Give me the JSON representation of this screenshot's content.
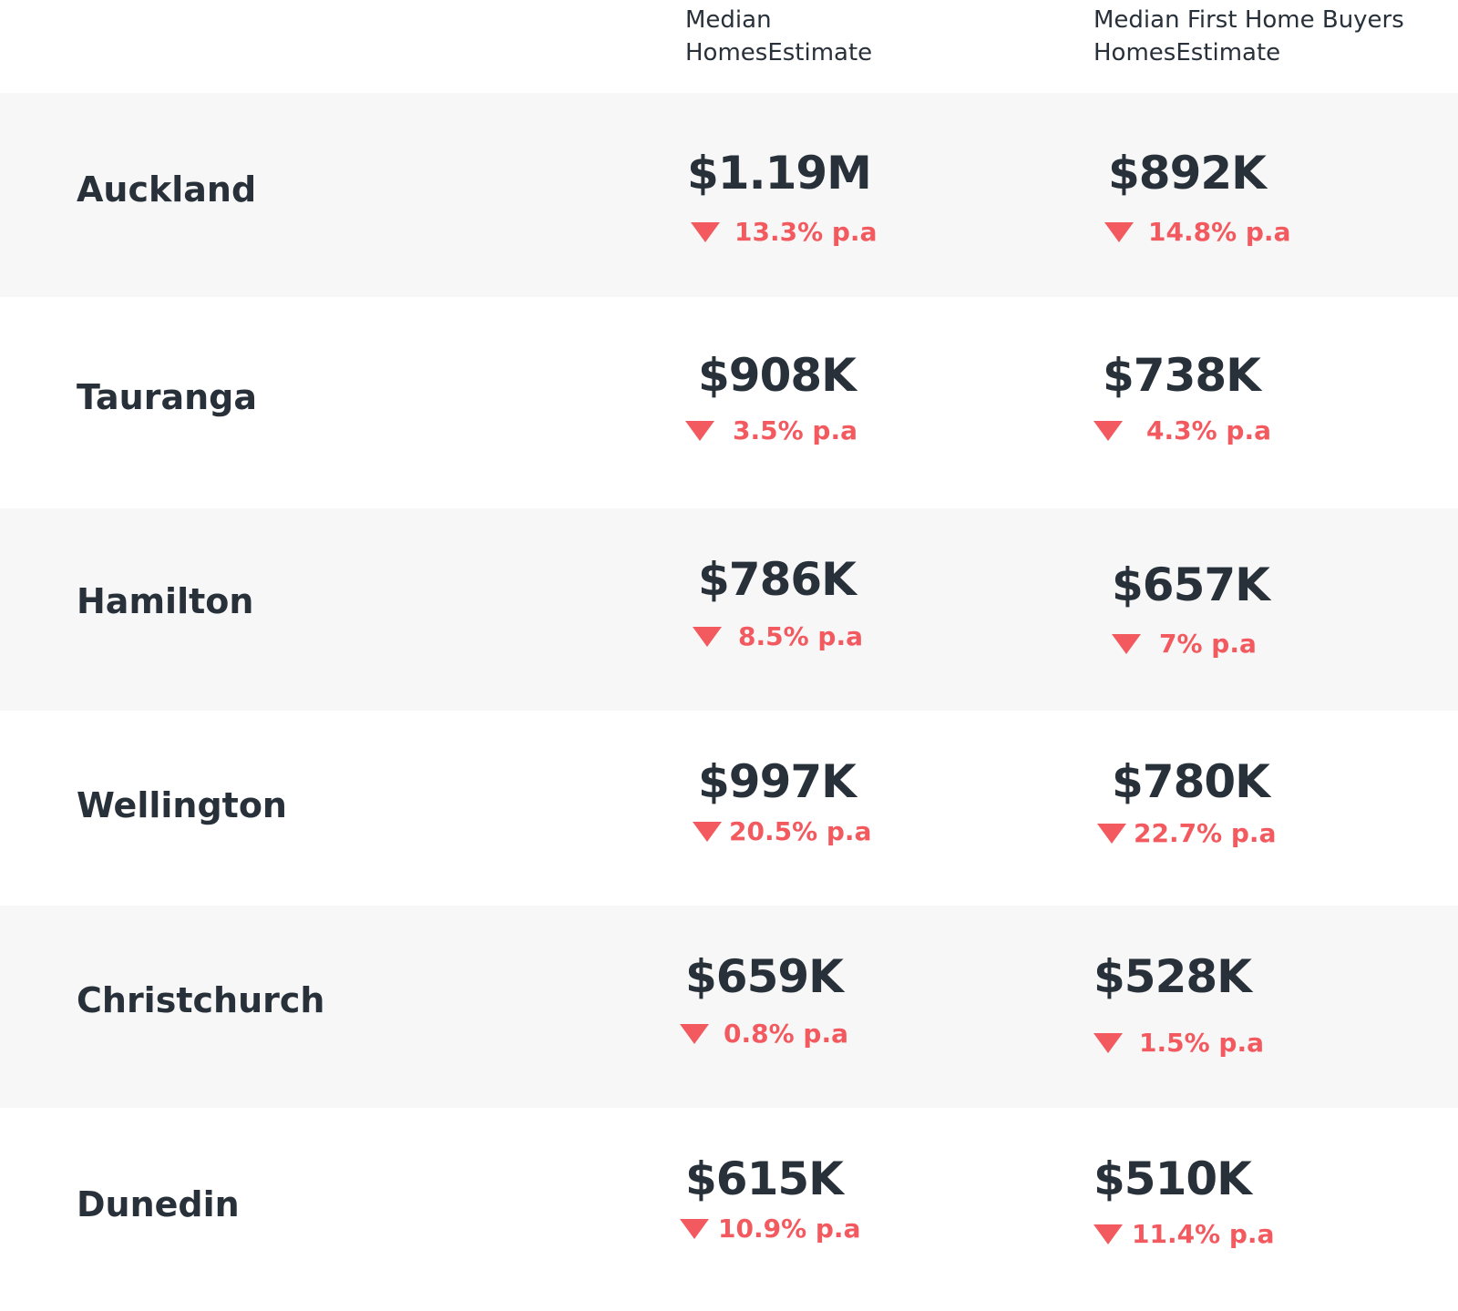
{
  "header": {
    "col1_title": "Median HomesEstimate",
    "col2_title": "Median First Home Buyers HomesEstimate"
  },
  "colors": {
    "text": "#283039",
    "decline": "#f25a5f",
    "row_shade": "#f7f7f7"
  },
  "rows": [
    {
      "city": "Auckland",
      "median": "$1.19M",
      "median_change": "13.3% p.a",
      "fhb": "$892K",
      "fhb_change": "14.8% p.a"
    },
    {
      "city": "Tauranga",
      "median": "$908K",
      "median_change": "3.5% p.a",
      "fhb": "$738K",
      "fhb_change": "4.3% p.a"
    },
    {
      "city": "Hamilton",
      "median": "$786K",
      "median_change": "8.5% p.a",
      "fhb": "$657K",
      "fhb_change": "7% p.a"
    },
    {
      "city": "Wellington",
      "median": "$997K",
      "median_change": "20.5% p.a",
      "fhb": "$780K",
      "fhb_change": "22.7% p.a"
    },
    {
      "city": "Christchurch",
      "median": "$659K",
      "median_change": "0.8% p.a",
      "fhb": "$528K",
      "fhb_change": "1.5% p.a"
    },
    {
      "city": "Dunedin",
      "median": "$615K",
      "median_change": "10.9% p.a",
      "fhb": "$510K",
      "fhb_change": "11.4% p.a"
    }
  ]
}
